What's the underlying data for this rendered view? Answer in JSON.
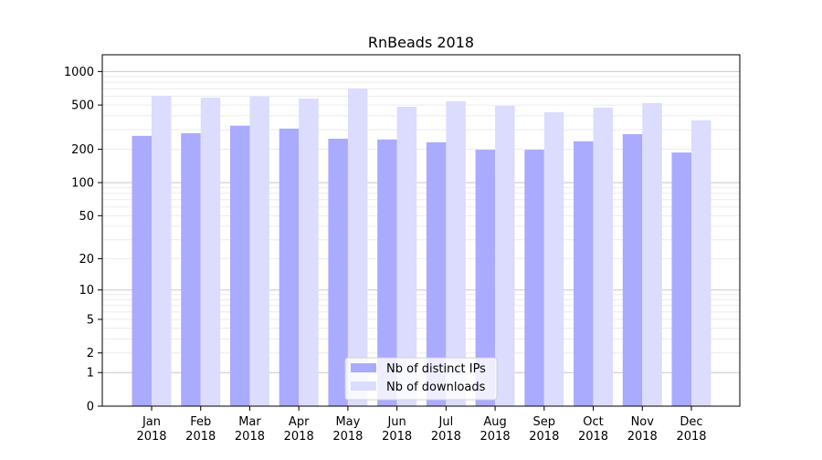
{
  "chart_data": {
    "type": "bar",
    "title": "RnBeads 2018",
    "xlabel": "",
    "ylabel": "",
    "yscale": "log(1+y)",
    "ylim": [
      0,
      1300
    ],
    "yticks": [
      0,
      1,
      2,
      5,
      10,
      20,
      50,
      100,
      200,
      500,
      1000
    ],
    "ytick_labels": [
      "0",
      "1",
      "2",
      "5",
      "10",
      "20",
      "50",
      "100",
      "200",
      "500",
      "1000"
    ],
    "grid": true,
    "legend_position": "bottom-center",
    "categories": [
      {
        "month": "Jan",
        "year": "2018"
      },
      {
        "month": "Feb",
        "year": "2018"
      },
      {
        "month": "Mar",
        "year": "2018"
      },
      {
        "month": "Apr",
        "year": "2018"
      },
      {
        "month": "May",
        "year": "2018"
      },
      {
        "month": "Jun",
        "year": "2018"
      },
      {
        "month": "Jul",
        "year": "2018"
      },
      {
        "month": "Aug",
        "year": "2018"
      },
      {
        "month": "Sep",
        "year": "2018"
      },
      {
        "month": "Oct",
        "year": "2018"
      },
      {
        "month": "Nov",
        "year": "2018"
      },
      {
        "month": "Dec",
        "year": "2018"
      }
    ],
    "series": [
      {
        "name": "Nb of distinct IPs",
        "color": "#aaaaff",
        "values": [
          264,
          279,
          326,
          307,
          249,
          245,
          231,
          198,
          198,
          236,
          274,
          187
        ]
      },
      {
        "name": "Nb of downloads",
        "color": "#dcdcfe",
        "values": [
          606,
          583,
          598,
          572,
          704,
          483,
          541,
          492,
          431,
          474,
          521,
          364
        ]
      }
    ]
  }
}
